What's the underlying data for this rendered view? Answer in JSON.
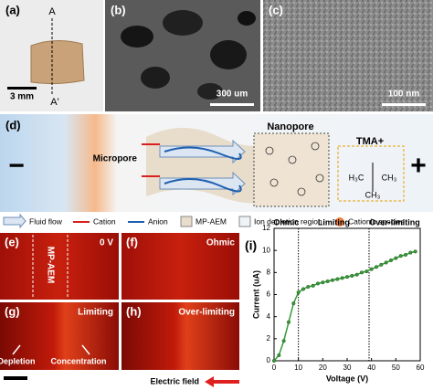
{
  "panels": {
    "a": {
      "label": "(a)",
      "section_start": "A",
      "section_end": "A'",
      "scale_bar": "3 mm"
    },
    "b": {
      "label": "(b)",
      "scale_bar": "300 um"
    },
    "c": {
      "label": "(c)",
      "scale_bar": "100 nm"
    },
    "d": {
      "label": "(d)",
      "minus": "−",
      "micropore": "Micropore",
      "nanopore": "Nanopore",
      "group": "TMA+",
      "methyl_left": "H₃C",
      "methyl_right": "CH₃",
      "methyl_bottom": "CH₃",
      "plus": "+"
    },
    "legend": [
      "Fluid flow",
      "Cation",
      "Anion",
      "MP-AEM",
      "Ion depletion region",
      "Cationic species"
    ],
    "e": {
      "label": "(e)",
      "membrane": "MP-AEM",
      "voltage": "0 V"
    },
    "f": {
      "label": "(f)",
      "regime": "Ohmic"
    },
    "g": {
      "label": "(g)",
      "regime": "Limiting",
      "left_note": "Depletion",
      "right_note": "Concentration"
    },
    "h": {
      "label": "(h)",
      "regime": "Over-limiting",
      "field": "Electric field"
    }
  },
  "chart_data": {
    "type": "line",
    "label": "(i)",
    "x_label": "Voltage (V)",
    "y_label": "Current (uA)",
    "x": [
      0,
      2,
      4,
      6,
      8,
      10,
      12,
      14,
      16,
      18,
      20,
      22,
      24,
      26,
      28,
      30,
      32,
      34,
      36,
      38,
      40,
      42,
      44,
      46,
      48,
      50,
      52,
      54,
      56,
      58
    ],
    "values": [
      0,
      0.5,
      1.8,
      3.5,
      5.2,
      6.2,
      6.5,
      6.7,
      6.8,
      7.0,
      7.1,
      7.2,
      7.3,
      7.4,
      7.5,
      7.6,
      7.7,
      7.8,
      8.0,
      8.1,
      8.3,
      8.5,
      8.7,
      8.9,
      9.1,
      9.3,
      9.5,
      9.6,
      9.8,
      9.9
    ],
    "color": "#3a9a3a",
    "xlim": [
      0,
      60
    ],
    "xticks": [
      0,
      10,
      20,
      30,
      40,
      50,
      60
    ],
    "ylim": [
      0,
      12
    ],
    "yticks": [
      0,
      2,
      4,
      6,
      8,
      10,
      12
    ],
    "region_boundaries": [
      10,
      39
    ],
    "regions": [
      "Ohmic",
      "Limiting",
      "Over-limiting"
    ]
  }
}
